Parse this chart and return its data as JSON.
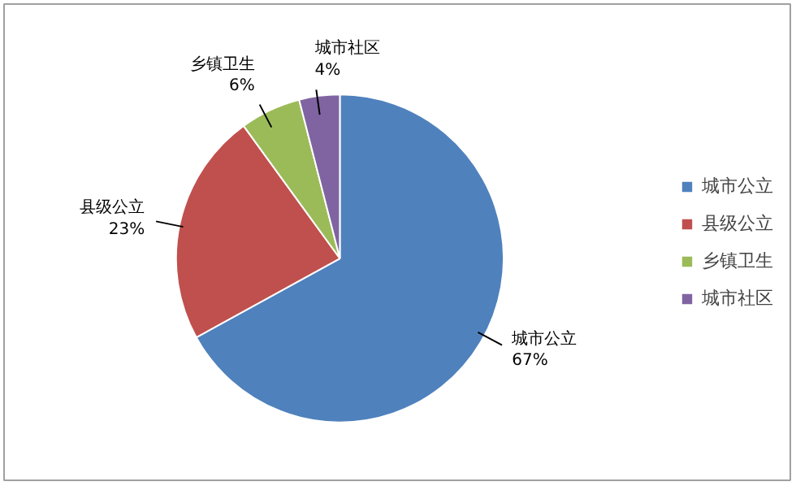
{
  "chart_data": {
    "type": "pie",
    "categories": [
      "城市公立",
      "县级公立",
      "乡镇卫生",
      "城市社区"
    ],
    "values": [
      67,
      23,
      6,
      4
    ],
    "colors": [
      "#4f81bd",
      "#c0504d",
      "#9bbb59",
      "#8064a2"
    ],
    "value_labels": [
      "67%",
      "23%",
      "6%",
      "4%"
    ],
    "legend": "right"
  }
}
